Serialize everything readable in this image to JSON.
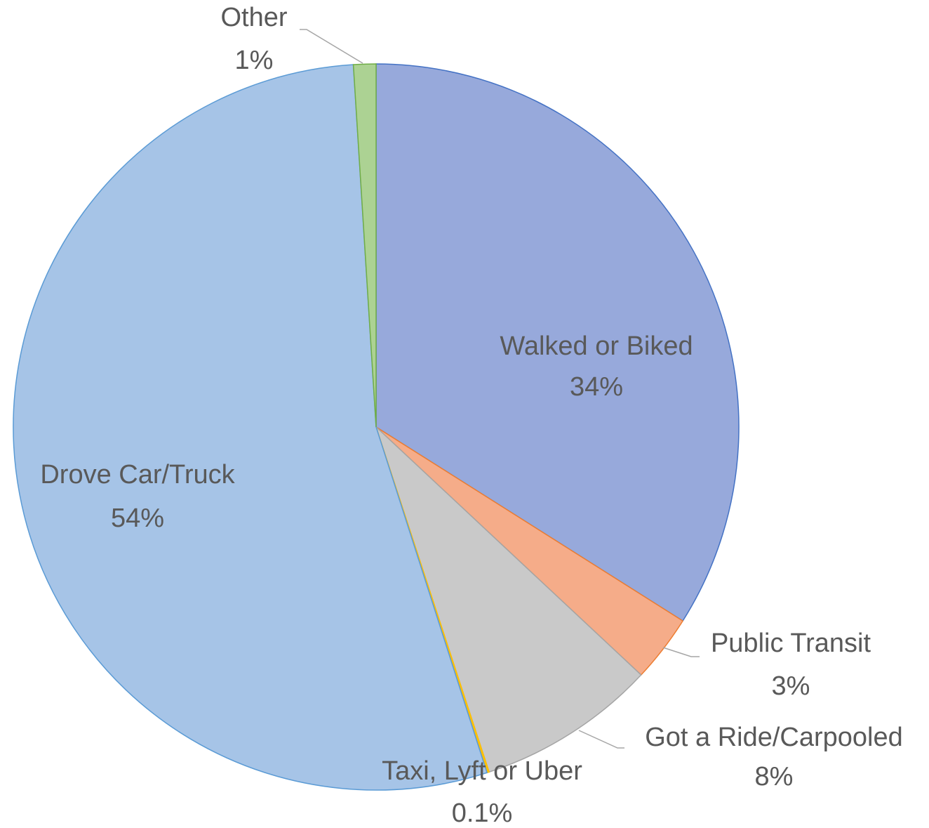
{
  "chart_data": {
    "type": "pie",
    "categories": [
      "Walked or Biked",
      "Public Transit",
      "Got a Ride/Carpooled",
      "Taxi, Lyft or Uber",
      "Drove Car/Truck",
      "Other"
    ],
    "values": [
      34,
      3,
      8,
      0.1,
      54,
      1
    ],
    "value_labels": [
      "34%",
      "3%",
      "8%",
      "0.1%",
      "54%",
      "1%"
    ],
    "colors": [
      "#97a9db",
      "#f5ac89",
      "#c9c9c9",
      "#ffc000",
      "#a6c4e7",
      "#acd293"
    ],
    "edge_colors": [
      "#4472c4",
      "#ed7d31",
      "#a5a5a5",
      "#ffc000",
      "#5b9bd5",
      "#70ad47"
    ]
  }
}
